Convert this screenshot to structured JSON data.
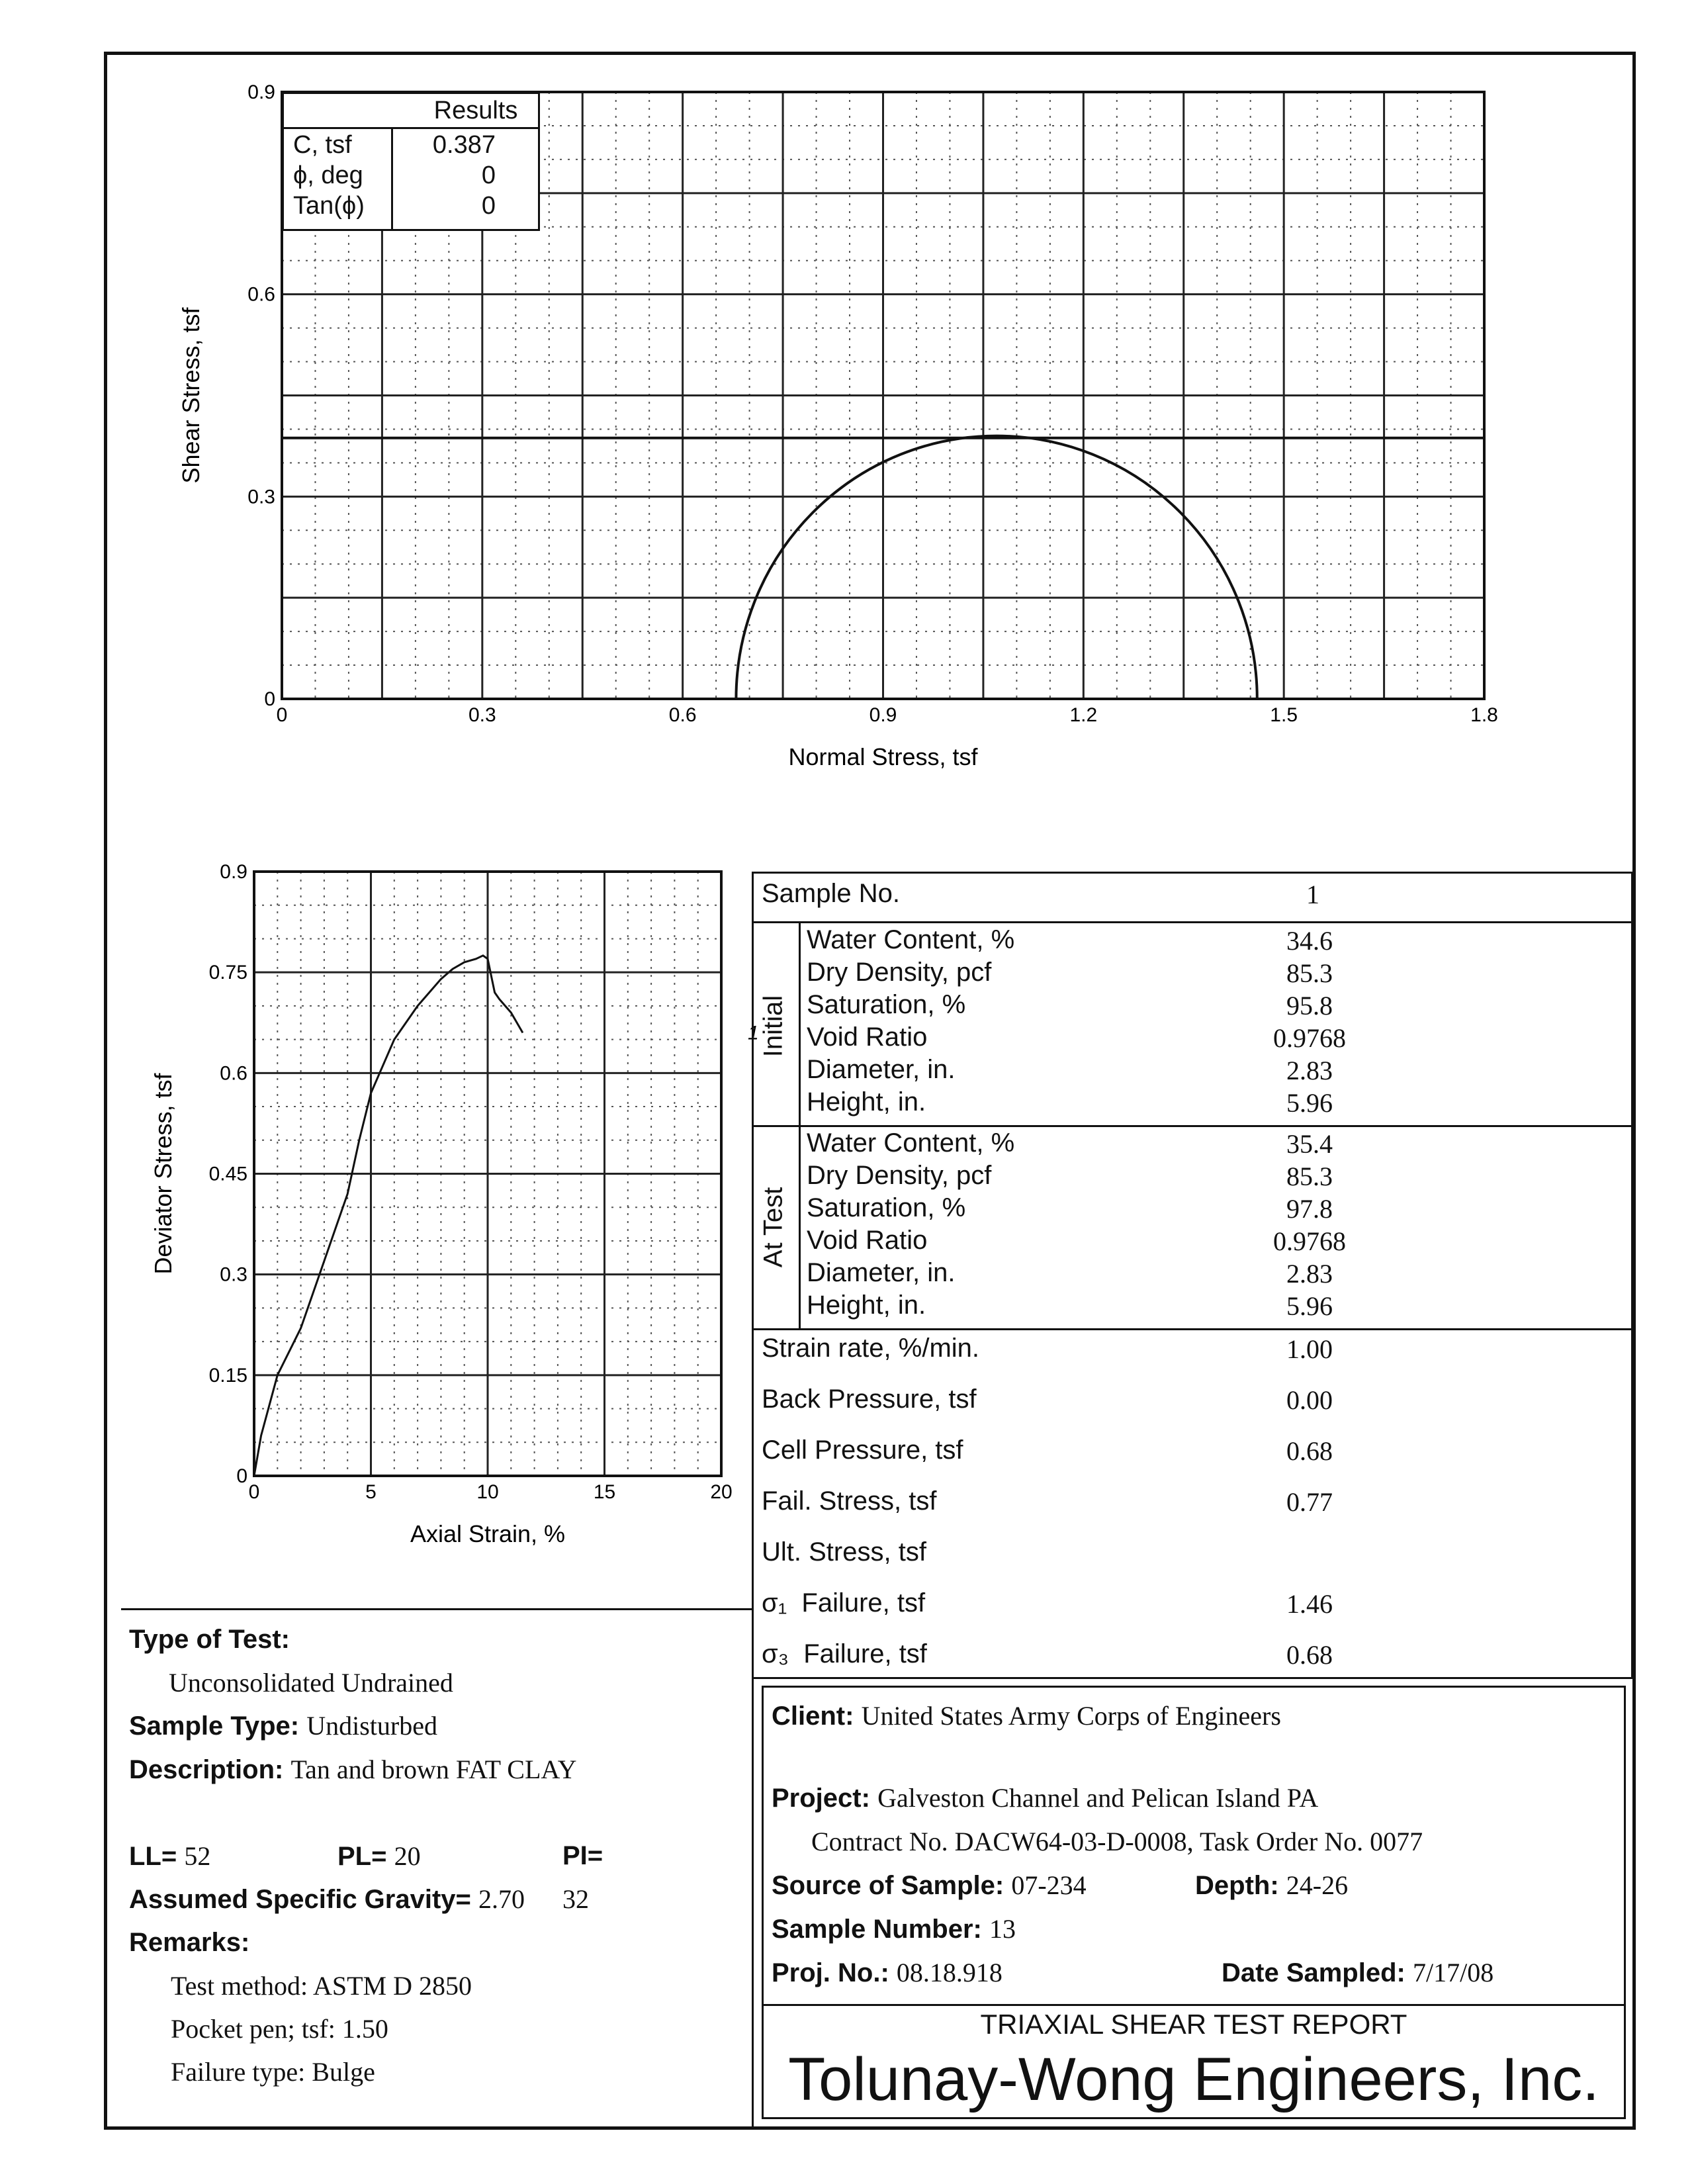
{
  "mohr_chart": {
    "chart_data": {
      "type": "line",
      "title": "",
      "xlabel": "Normal Stress, tsf",
      "ylabel": "Shear Stress, tsf",
      "xlim": [
        0,
        1.8
      ],
      "ylim": [
        0,
        0.9
      ],
      "xticks": [
        "0",
        "0.3",
        "0.6",
        "0.9",
        "1.2",
        "1.5",
        "1.8"
      ],
      "yticks": [
        "0",
        "0.3",
        "0.6",
        "0.9"
      ],
      "circles": [
        {
          "sigma3": 0.68,
          "sigma1": 1.46
        }
      ],
      "envelope": {
        "c": 0.387,
        "phi": 0
      },
      "grid": true
    }
  },
  "results": {
    "title": "Results",
    "rows": [
      {
        "label": "C, tsf",
        "value": "0.387"
      },
      {
        "label": "ϕ, deg",
        "value": "0"
      },
      {
        "label": "Tan(ϕ)",
        "value": "0"
      }
    ]
  },
  "strain_chart": {
    "chart_data": {
      "type": "line",
      "xlabel": "Axial Strain, %",
      "ylabel": "Deviator Stress, tsf",
      "xlim": [
        0,
        20
      ],
      "ylim": [
        0,
        0.9
      ],
      "xticks": [
        "0",
        "5",
        "10",
        "15",
        "20"
      ],
      "yticks": [
        "0",
        "0.15",
        "0.3",
        "0.45",
        "0.6",
        "0.75",
        "0.9"
      ],
      "series": [
        {
          "name": "1",
          "x": [
            0,
            0.3,
            1,
            2,
            2.5,
            3,
            4,
            4.5,
            5,
            5.5,
            6,
            7,
            8,
            8.5,
            9,
            9.5,
            9.8,
            10,
            10.3,
            10.5,
            11,
            11.5
          ],
          "y": [
            0,
            0.06,
            0.15,
            0.22,
            0.27,
            0.32,
            0.42,
            0.5,
            0.57,
            0.61,
            0.65,
            0.7,
            0.74,
            0.755,
            0.765,
            0.77,
            0.775,
            0.77,
            0.72,
            0.71,
            0.69,
            0.66
          ]
        }
      ],
      "grid": true
    }
  },
  "sample_table": {
    "sample_no_label": "Sample No.",
    "sample_no": "1",
    "initial_label": "Initial",
    "at_test_label": "At Test",
    "initial": [
      {
        "label": "Water Content, %",
        "value": "34.6"
      },
      {
        "label": "Dry Density, pcf",
        "value": "85.3"
      },
      {
        "label": "Saturation, %",
        "value": "95.8"
      },
      {
        "label": "Void Ratio",
        "value": "0.9768"
      },
      {
        "label": "Diameter, in.",
        "value": "2.83"
      },
      {
        "label": "Height, in.",
        "value": "5.96"
      }
    ],
    "at_test": [
      {
        "label": "Water Content, %",
        "value": "35.4"
      },
      {
        "label": "Dry Density, pcf",
        "value": "85.3"
      },
      {
        "label": "Saturation, %",
        "value": "97.8"
      },
      {
        "label": "Void Ratio",
        "value": "0.9768"
      },
      {
        "label": "Diameter, in.",
        "value": "2.83"
      },
      {
        "label": "Height, in.",
        "value": "5.96"
      }
    ],
    "other": [
      {
        "label": "Strain rate, %/min.",
        "value": "1.00"
      },
      {
        "label": "Back Pressure, tsf",
        "value": "0.00"
      },
      {
        "label": "Cell Pressure, tsf",
        "value": "0.68"
      },
      {
        "label": "Fail. Stress, tsf",
        "value": "0.77"
      },
      {
        "label": "Ult. Stress, tsf",
        "value": ""
      },
      {
        "label": "σ₁  Failure, tsf",
        "value": "1.46"
      },
      {
        "label": "σ₃  Failure, tsf",
        "value": "0.68"
      }
    ]
  },
  "test_info": {
    "type_label": "Type of Test:",
    "type_value": "Unconsolidated Undrained",
    "sample_type_label": "Sample Type:",
    "sample_type_value": "Undisturbed",
    "description_label": "Description:",
    "description_value": "Tan and brown FAT CLAY",
    "ll_label": "LL=",
    "ll": "52",
    "pl_label": "PL=",
    "pl": "20",
    "pi_label": "PI=",
    "pi": "32",
    "gs_label": "Assumed Specific Gravity=",
    "gs": "2.70",
    "remarks_label": "Remarks:",
    "remarks": [
      "Test method: ASTM D 2850",
      "Pocket pen; tsf: 1.50",
      "Failure type: Bulge"
    ]
  },
  "project": {
    "client_label": "Client:",
    "client": "United States Army Corps of Engineers",
    "project_label": "Project:",
    "project": "Galveston Channel and Pelican Island PA",
    "contract": "Contract No. DACW64-03-D-0008, Task Order No. 0077",
    "source_label": "Source of Sample:",
    "source": "07-234",
    "depth_label": "Depth:",
    "depth": "24-26",
    "sample_number_label": "Sample Number:",
    "sample_number": "13",
    "proj_no_label": "Proj. No.:",
    "proj_no": "08.18.918",
    "date_label": "Date Sampled:",
    "date": "7/17/08",
    "report_title": "TRIAXIAL SHEAR TEST REPORT",
    "company": "Tolunay-Wong Engineers, Inc."
  }
}
